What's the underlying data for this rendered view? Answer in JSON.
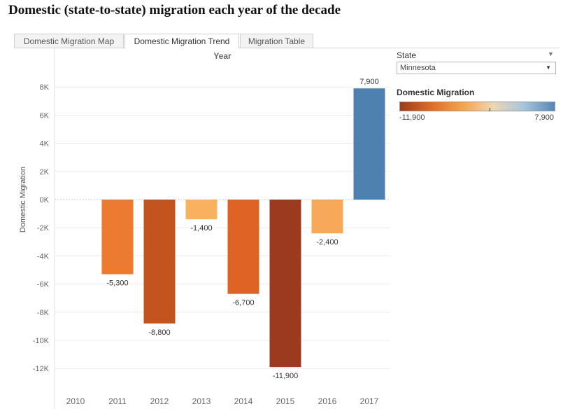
{
  "page": {
    "title": "Domestic (state-to-state) migration each year of the decade"
  },
  "tabs": [
    {
      "label": "Domestic Migration Map",
      "active": false
    },
    {
      "label": "Domestic Migration Trend",
      "active": true
    },
    {
      "label": "Migration Table",
      "active": false
    }
  ],
  "filter": {
    "label": "State",
    "value": "Minnesota"
  },
  "legend": {
    "title": "Domestic Migration",
    "min_label": "-11,900",
    "max_label": "7,900",
    "colors": [
      "#9b3a1f",
      "#e06a26",
      "#f2a34a",
      "#eed6b0",
      "#a7c5dc",
      "#5586b6"
    ]
  },
  "chart_data": {
    "type": "bar",
    "title": "",
    "header": "Year",
    "xlabel": "",
    "ylabel": "Domestic Migration",
    "ylim": [
      -13000,
      9000
    ],
    "yticks": [
      {
        "value": 8000,
        "label": "8K"
      },
      {
        "value": 6000,
        "label": "6K"
      },
      {
        "value": 4000,
        "label": "4K"
      },
      {
        "value": 2000,
        "label": "2K"
      },
      {
        "value": 0,
        "label": "0K"
      },
      {
        "value": -2000,
        "label": "-2K"
      },
      {
        "value": -4000,
        "label": "-4K"
      },
      {
        "value": -6000,
        "label": "-6K"
      },
      {
        "value": -8000,
        "label": "-8K"
      },
      {
        "value": -10000,
        "label": "-10K"
      },
      {
        "value": -12000,
        "label": "-12K"
      }
    ],
    "categories": [
      "2010",
      "2011",
      "2012",
      "2013",
      "2014",
      "2015",
      "2016",
      "2017"
    ],
    "values": [
      null,
      -5300,
      -8800,
      -1400,
      -6700,
      -11900,
      -2400,
      7900
    ],
    "labels": [
      "",
      "-5,300",
      "-8,800",
      "-1,400",
      "-6,700",
      "-11,900",
      "-2,400",
      "7,900"
    ],
    "colors": [
      "",
      "#ec7a30",
      "#c4541f",
      "#f8b15e",
      "#df6325",
      "#9b3a1f",
      "#f7a859",
      "#4e81b0"
    ],
    "grid": true
  }
}
